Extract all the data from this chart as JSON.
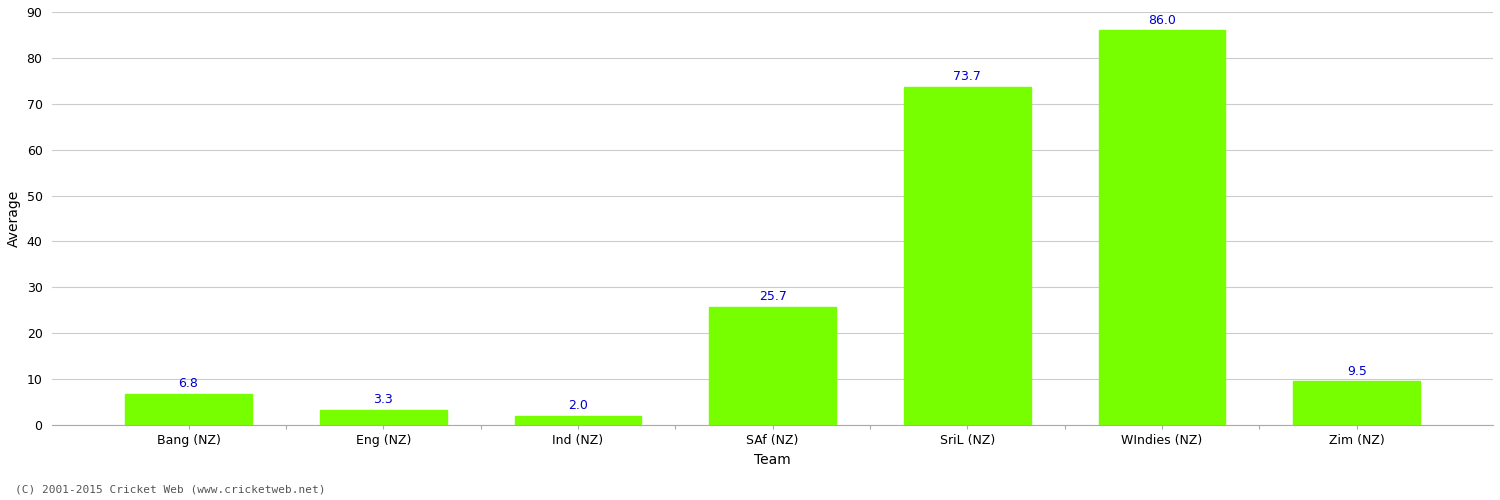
{
  "categories": [
    "Bang (NZ)",
    "Eng (NZ)",
    "Ind (NZ)",
    "SAf (NZ)",
    "SriL (NZ)",
    "WIndies (NZ)",
    "Zim (NZ)"
  ],
  "values": [
    6.8,
    3.3,
    2.0,
    25.7,
    73.7,
    86.0,
    9.5
  ],
  "bar_color": "#77ff00",
  "bar_edge_color": "#77ff00",
  "value_color": "#0000cc",
  "xlabel": "Team",
  "ylabel": "Average",
  "ylim": [
    0,
    90
  ],
  "yticks": [
    0,
    10,
    20,
    30,
    40,
    50,
    60,
    70,
    80,
    90
  ],
  "grid_color": "#cccccc",
  "background_color": "#ffffff",
  "footer_text": "(C) 2001-2015 Cricket Web (www.cricketweb.net)",
  "value_fontsize": 9,
  "axis_label_fontsize": 10,
  "tick_label_fontsize": 9,
  "footer_fontsize": 8
}
